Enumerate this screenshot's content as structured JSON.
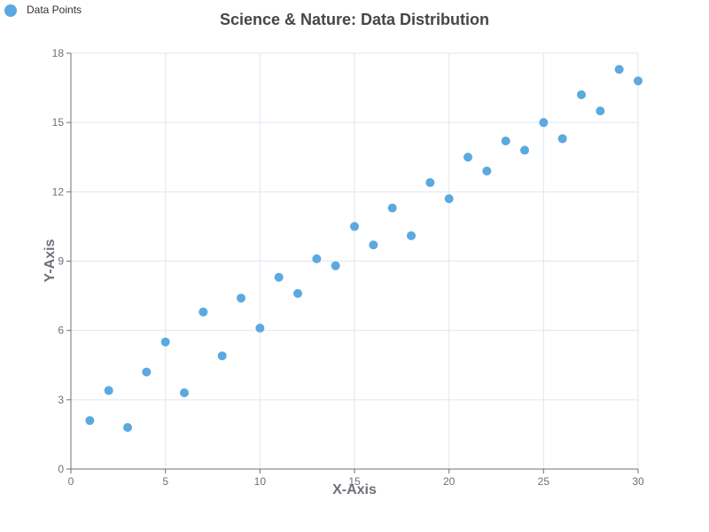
{
  "chart_data": {
    "type": "scatter",
    "title": "Science & Nature: Data Distribution",
    "xlabel": "X-Axis",
    "ylabel": "Y-Axis",
    "xlim": [
      0,
      30
    ],
    "ylim": [
      0,
      18
    ],
    "xticks": [
      0,
      5,
      10,
      15,
      20,
      25,
      30
    ],
    "yticks": [
      0,
      3,
      6,
      9,
      12,
      15,
      18
    ],
    "grid": true,
    "legend": {
      "placement": "top-left",
      "entries": [
        "Data Points"
      ]
    },
    "series": [
      {
        "name": "Data Points",
        "color": "#5aa9df",
        "points": [
          {
            "x": 1,
            "y": 2.1
          },
          {
            "x": 2,
            "y": 3.4
          },
          {
            "x": 3,
            "y": 1.8
          },
          {
            "x": 4,
            "y": 4.2
          },
          {
            "x": 5,
            "y": 5.5
          },
          {
            "x": 6,
            "y": 3.3
          },
          {
            "x": 7,
            "y": 6.8
          },
          {
            "x": 8,
            "y": 4.9
          },
          {
            "x": 9,
            "y": 7.4
          },
          {
            "x": 10,
            "y": 6.1
          },
          {
            "x": 11,
            "y": 8.3
          },
          {
            "x": 12,
            "y": 7.6
          },
          {
            "x": 13,
            "y": 9.1
          },
          {
            "x": 14,
            "y": 8.8
          },
          {
            "x": 15,
            "y": 10.5
          },
          {
            "x": 16,
            "y": 9.7
          },
          {
            "x": 17,
            "y": 11.3
          },
          {
            "x": 18,
            "y": 10.1
          },
          {
            "x": 19,
            "y": 12.4
          },
          {
            "x": 20,
            "y": 11.7
          },
          {
            "x": 21,
            "y": 13.5
          },
          {
            "x": 22,
            "y": 12.9
          },
          {
            "x": 23,
            "y": 14.2
          },
          {
            "x": 24,
            "y": 13.8
          },
          {
            "x": 25,
            "y": 15.0
          },
          {
            "x": 26,
            "y": 14.3
          },
          {
            "x": 27,
            "y": 16.2
          },
          {
            "x": 28,
            "y": 15.5
          },
          {
            "x": 29,
            "y": 17.3
          },
          {
            "x": 30,
            "y": 16.8
          }
        ]
      }
    ]
  }
}
